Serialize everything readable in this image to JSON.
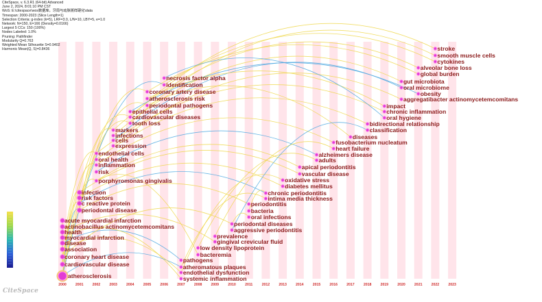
{
  "header": {
    "lines": [
      "CiteSpace, v. 6.3.R1 (64-bit) Advanced",
      "June 2, 2024, 8:01:10 PM CST",
      "WoS: E:\\citespace\\wos数据库，牙周与动脉粥样硬化\\data",
      "Timespan: 2000-2023 (Slice Length=1)",
      "Selection Criteria: g-index (k=5), LRF=3.0, L/N=10, LBY=5, e=1.0",
      "Network: N=150, E=166 (Density=0.0166)",
      "Largest 5 CCs: 150 (100%)",
      "Nodes Labeled: 1.0%",
      "Pruning: Pathfinder",
      "Modularity Q=0.763",
      "Weighted Mean Silhouette S=0.9402",
      "Harmonic Mean(Q, S)=0.8436"
    ]
  },
  "brand": "CiteSpace",
  "colors": {
    "label": "#8b1a1a",
    "stripe": "#ffe4ea",
    "node": "#e23cd4",
    "node_ring": "#ff86f0",
    "year_text": "#d03030",
    "link_yellow": "#efd74a",
    "link_blue": "#4aa7e0"
  },
  "years": [
    "2000",
    "2001",
    "2002",
    "2003",
    "2004",
    "2005",
    "2006",
    "2007",
    "2008",
    "2009",
    "2010",
    "2011",
    "2012",
    "2013",
    "2014",
    "2015",
    "2016",
    "2017",
    "2018",
    "2019",
    "2020",
    "2021",
    "2022",
    "2023"
  ],
  "keywords": [
    {
      "label": "atherosclerosis",
      "year": "2000"
    },
    {
      "label": "cardiovascular disease",
      "year": "2000"
    },
    {
      "label": "coronary heart disease",
      "year": "2000"
    },
    {
      "label": "association",
      "year": "2000"
    },
    {
      "label": "disease",
      "year": "2000"
    },
    {
      "label": "myocardial infarction",
      "year": "2000"
    },
    {
      "label": "health",
      "year": "2000"
    },
    {
      "label": "actinobacillus actinomycetemcomitans",
      "year": "2000"
    },
    {
      "label": "acute myocardial infarction",
      "year": "2000"
    },
    {
      "label": "periodontal disease",
      "year": "2001"
    },
    {
      "label": "c reactive protein",
      "year": "2001"
    },
    {
      "label": "risk factors",
      "year": "2001"
    },
    {
      "label": "infection",
      "year": "2001"
    },
    {
      "label": "porphyromonas gingivalis",
      "year": "2002"
    },
    {
      "label": "risk",
      "year": "2002"
    },
    {
      "label": "inflammation",
      "year": "2002"
    },
    {
      "label": "oral health",
      "year": "2002"
    },
    {
      "label": "endothelial cells",
      "year": "2002"
    },
    {
      "label": "expression",
      "year": "2003"
    },
    {
      "label": "cells",
      "year": "2003"
    },
    {
      "label": "infections",
      "year": "2003"
    },
    {
      "label": "markers",
      "year": "2003"
    },
    {
      "label": "tooth loss",
      "year": "2004"
    },
    {
      "label": "cardiovascular diseases",
      "year": "2004"
    },
    {
      "label": "epithelial cells",
      "year": "2004"
    },
    {
      "label": "periodontal pathogens",
      "year": "2005"
    },
    {
      "label": "atherosclerosis risk",
      "year": "2005"
    },
    {
      "label": "coronary artery disease",
      "year": "2005"
    },
    {
      "label": "identification",
      "year": "2006"
    },
    {
      "label": "necrosis factor alpha",
      "year": "2006"
    },
    {
      "label": "pathogens",
      "year": "2007"
    },
    {
      "label": "atheromatous plaques",
      "year": "2007"
    },
    {
      "label": "endothelial dysfunction",
      "year": "2007"
    },
    {
      "label": "systemic inflammation",
      "year": "2007"
    },
    {
      "label": "bacteremia",
      "year": "2008"
    },
    {
      "label": "low density lipoprotein",
      "year": "2008"
    },
    {
      "label": "gingival crevicular fluid",
      "year": "2009"
    },
    {
      "label": "prevalence",
      "year": "2009"
    },
    {
      "label": "aggressive periodontitis",
      "year": "2010"
    },
    {
      "label": "periodontal diseases",
      "year": "2010"
    },
    {
      "label": "oral infections",
      "year": "2011"
    },
    {
      "label": "bacteria",
      "year": "2011"
    },
    {
      "label": "periodontitis",
      "year": "2011"
    },
    {
      "label": "intima media thickness",
      "year": "2012"
    },
    {
      "label": "chronic periodontitis",
      "year": "2012"
    },
    {
      "label": "diabetes mellitus",
      "year": "2013"
    },
    {
      "label": "oxidative stress",
      "year": "2013"
    },
    {
      "label": "vascular disease",
      "year": "2014"
    },
    {
      "label": "apical periodontitis",
      "year": "2014"
    },
    {
      "label": "adults",
      "year": "2015"
    },
    {
      "label": "alzheimers disease",
      "year": "2015"
    },
    {
      "label": "heart failure",
      "year": "2016"
    },
    {
      "label": "fusobacterium nucleatum",
      "year": "2016"
    },
    {
      "label": "diseases",
      "year": "2017"
    },
    {
      "label": "classification",
      "year": "2018"
    },
    {
      "label": "bidirectional relationship",
      "year": "2018"
    },
    {
      "label": "oral hygiene",
      "year": "2019"
    },
    {
      "label": "chronic inflammation",
      "year": "2019"
    },
    {
      "label": "impact",
      "year": "2019"
    },
    {
      "label": "aggregatibacter actinomycetemcomitans",
      "year": "2020"
    },
    {
      "label": "obesity",
      "year": "2021"
    },
    {
      "label": "oral microbiome",
      "year": "2020"
    },
    {
      "label": "gut microbiota",
      "year": "2020"
    },
    {
      "label": "global burden",
      "year": "2021"
    },
    {
      "label": "alveolar bone loss",
      "year": "2021"
    },
    {
      "label": "cytokines",
      "year": "2022"
    },
    {
      "label": "smooth muscle cells",
      "year": "2022"
    },
    {
      "label": "stroke",
      "year": "2022"
    }
  ]
}
